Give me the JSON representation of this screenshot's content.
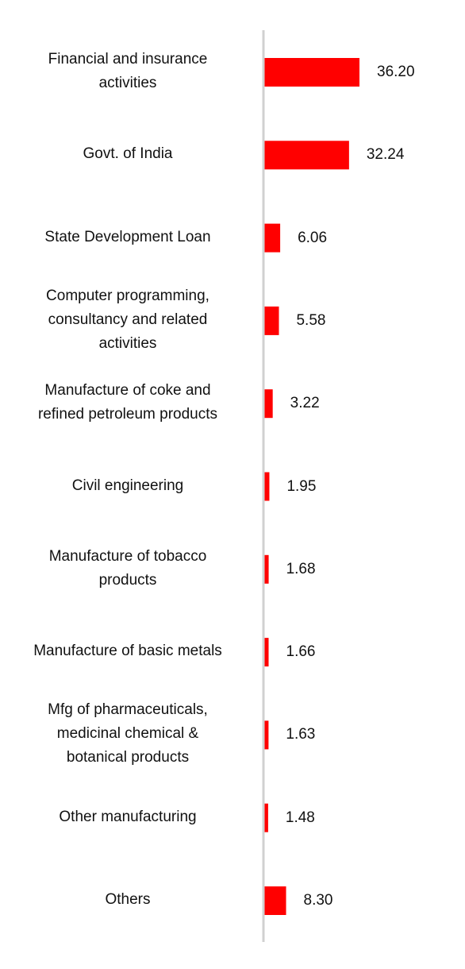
{
  "chart_data": {
    "type": "bar",
    "orientation": "horizontal",
    "categories": [
      "Financial and insurance\nactivities",
      "Govt. of India",
      "State Development Loan",
      "Computer programming,\nconsultancy and related\nactivities",
      "Manufacture of coke and\nrefined petroleum products",
      "Civil engineering",
      "Manufacture of tobacco\nproducts",
      "Manufacture of basic metals",
      "Mfg of pharmaceuticals,\nmedicinal chemical &\nbotanical products",
      "Other manufacturing",
      "Others"
    ],
    "values": [
      36.2,
      32.24,
      6.06,
      5.58,
      3.22,
      1.95,
      1.68,
      1.66,
      1.63,
      1.48,
      8.3
    ],
    "value_labels": [
      "36.20",
      "32.24",
      "6.06",
      "5.58",
      "3.22",
      "1.95",
      "1.68",
      "1.66",
      "1.63",
      "1.48",
      "8.30"
    ],
    "xlim": [
      0,
      36.2
    ],
    "grid": false,
    "legend": "none",
    "bar_color": "#ff0000",
    "axis_color": "#d0d0d0"
  }
}
